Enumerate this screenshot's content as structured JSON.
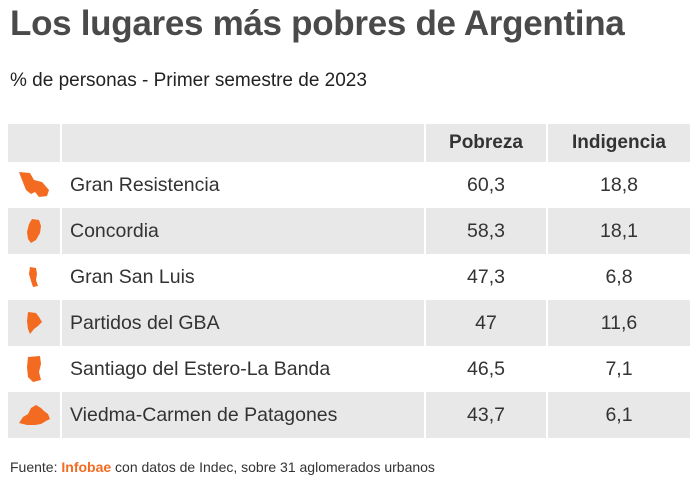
{
  "title": "Los lugares más pobres de Argentina",
  "subtitle": "% de personas - Primer semestre de 2023",
  "accent_color": "#f26b21",
  "chart_data": {
    "type": "table",
    "columns": [
      "Pobreza",
      "Indigencia"
    ],
    "rows": [
      {
        "name": "Gran Resistencia",
        "pobreza": "60,3",
        "indigencia": "18,8",
        "icon": "chaco-province-icon"
      },
      {
        "name": "Concordia",
        "pobreza": "58,3",
        "indigencia": "18,1",
        "icon": "entre-rios-province-icon"
      },
      {
        "name": "Gran San Luis",
        "pobreza": "47,3",
        "indigencia": "6,8",
        "icon": "san-luis-province-icon"
      },
      {
        "name": "Partidos del GBA",
        "pobreza": "47",
        "indigencia": "11,6",
        "icon": "buenos-aires-province-icon"
      },
      {
        "name": "Santiago del Estero-La Banda",
        "pobreza": "46,5",
        "indigencia": "7,1",
        "icon": "santiago-del-estero-province-icon"
      },
      {
        "name": "Viedma-Carmen de Patagones",
        "pobreza": "43,7",
        "indigencia": "6,1",
        "icon": "rio-negro-province-icon"
      }
    ]
  },
  "footer": {
    "prefix": "Fuente: ",
    "brand": "Infobae",
    "suffix": " con datos de Indec, sobre 31 aglomerados urbanos"
  }
}
